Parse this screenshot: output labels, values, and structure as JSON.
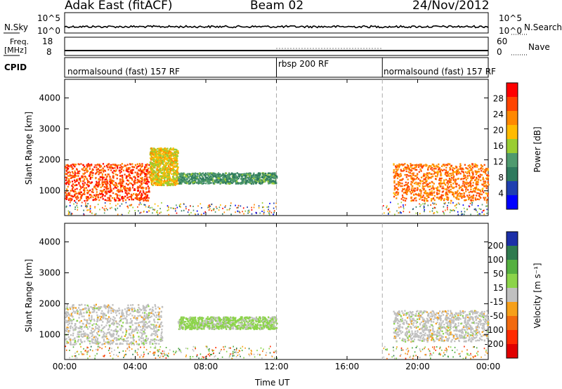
{
  "header": {
    "station": "Adak East (fitACF)",
    "beam": "Beam 02",
    "date": "24/Nov/2012"
  },
  "sky_panel": {
    "left_label": "N.Sky",
    "right_label": "N.Search",
    "left_ticks": [
      "10^5",
      "10^0"
    ],
    "right_ticks": [
      "10^5",
      "10^0"
    ]
  },
  "freq_panel": {
    "left_label_1": "Freq.",
    "left_label_2": "[MHz]",
    "right_label": "Nave",
    "left_ticks": [
      "18",
      "8"
    ],
    "right_ticks": [
      "60",
      "0"
    ]
  },
  "cpid": {
    "label": "CPID",
    "segments": [
      {
        "name": "normalsound (fast) 157 RF",
        "start": 0,
        "end": 12
      },
      {
        "name": "rbsp 200 RF",
        "start": 12,
        "end": 18
      },
      {
        "name": "normalsound (fast) 157 RF",
        "start": 18,
        "end": 24
      }
    ]
  },
  "power_colorbar": {
    "label": "Power [dB]",
    "ticks": [
      "28",
      "24",
      "20",
      "16",
      "12",
      "8",
      "4"
    ],
    "colors": [
      "#ff0000",
      "#ff4400",
      "#ff8800",
      "#ffbb00",
      "#9acd32",
      "#4f9a6e",
      "#2f7a5e",
      "#1f3fb0",
      "#0000ff"
    ]
  },
  "velocity_colorbar": {
    "label": "Velocity [m s⁻¹]",
    "ticks": [
      "200",
      "100",
      "50",
      "15",
      "-15",
      "-50",
      "-100",
      "-200"
    ],
    "colors": [
      "#1c2fa8",
      "#2f7a4f",
      "#55b040",
      "#8cd44a",
      "#c0c0c0",
      "#f6a01a",
      "#f26a0f",
      "#ff2a00",
      "#e00000"
    ]
  },
  "chart_data": {
    "type": "heatmap",
    "xlabel": "Time UT",
    "xticks": [
      "00:00",
      "04:00",
      "08:00",
      "12:00",
      "16:00",
      "20:00",
      "00:00"
    ],
    "ylabel": "Slant Range [km]",
    "yticks": [
      "4000",
      "3000",
      "2000",
      "1000"
    ],
    "xlim": [
      0,
      24
    ],
    "ylim": [
      200,
      4600
    ],
    "mode_change_times": [
      12,
      18
    ],
    "panels": [
      {
        "quantity": "Power [dB]",
        "regions": [
          {
            "t": [
              0,
              4.8
            ],
            "r": [
              700,
              1900
            ],
            "value_db": 26
          },
          {
            "t": [
              4.8,
              6.4
            ],
            "r": [
              1200,
              2400
            ],
            "value_db": 18
          },
          {
            "t": [
              6.4,
              12
            ],
            "r": [
              1250,
              1600
            ],
            "value_db": 10
          },
          {
            "t": [
              18.6,
              24
            ],
            "r": [
              700,
              1900
            ],
            "value_db": 24
          }
        ]
      },
      {
        "quantity": "Velocity [m s⁻¹]",
        "regions": [
          {
            "t": [
              0,
              5.5
            ],
            "r": [
              700,
              2000
            ],
            "value_ms": 0
          },
          {
            "t": [
              6.4,
              12
            ],
            "r": [
              1200,
              1600
            ],
            "value_ms": 40
          },
          {
            "t": [
              18.6,
              24
            ],
            "r": [
              800,
              1800
            ],
            "value_ms": 0
          }
        ]
      }
    ]
  }
}
